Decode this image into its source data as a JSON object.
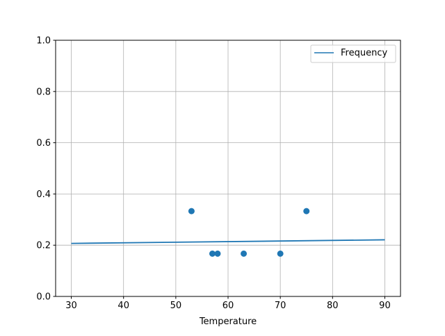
{
  "chart_data": {
    "type": "scatter",
    "title": "",
    "xlabel": "Temperature",
    "ylabel": "",
    "xlim": [
      27,
      93
    ],
    "ylim": [
      0,
      1
    ],
    "xticks": [
      30,
      40,
      50,
      60,
      70,
      80,
      90
    ],
    "yticks": [
      0.0,
      0.2,
      0.4,
      0.6,
      0.8,
      1.0
    ],
    "xtick_labels": [
      "30",
      "40",
      "50",
      "60",
      "70",
      "80",
      "90"
    ],
    "ytick_labels": [
      "0.0",
      "0.2",
      "0.4",
      "0.6",
      "0.8",
      "1.0"
    ],
    "grid": true,
    "legend": {
      "position": "top-right",
      "entries": [
        "Frequency"
      ]
    },
    "series": [
      {
        "name": "Frequency",
        "kind": "line",
        "color": "#1f77b4",
        "x": [
          30,
          90
        ],
        "y": [
          0.207,
          0.221
        ]
      },
      {
        "kind": "scatter",
        "color": "#1f77b4",
        "x": [
          53,
          57,
          58,
          63,
          70,
          75
        ],
        "y": [
          0.333,
          0.167,
          0.167,
          0.167,
          0.167,
          0.333
        ]
      }
    ]
  }
}
